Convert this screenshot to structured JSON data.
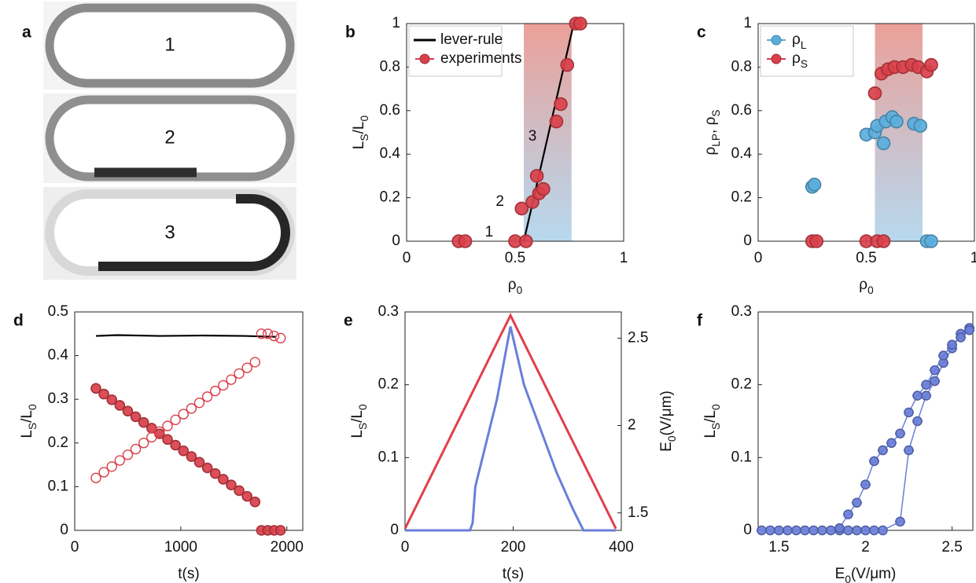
{
  "panel_a": {
    "label": "a",
    "images": [
      "1",
      "2",
      "3"
    ]
  },
  "chart_data": [
    {
      "panel": "b",
      "type": "scatter",
      "xlabel": [
        {
          "text": "ρ"
        },
        {
          "text": "0",
          "sub": true
        }
      ],
      "ylabel": [
        {
          "text": "L"
        },
        {
          "text": "S",
          "sub": true
        },
        {
          "text": "/L"
        },
        {
          "text": "0",
          "sub": true
        }
      ],
      "xlim": [
        0,
        1
      ],
      "ylim": [
        0,
        1
      ],
      "xticks": [
        0,
        0.5,
        1
      ],
      "yticks": [
        0,
        0.2,
        0.4,
        0.6,
        0.8,
        1
      ],
      "shade": [
        0.54,
        0.76
      ],
      "legend": "upper left",
      "series": [
        {
          "name": "lever-rule",
          "kind": "line",
          "color": "#000000",
          "x": [
            0.54,
            0.77
          ],
          "values": [
            0,
            1
          ]
        },
        {
          "name": "experiments",
          "kind": "marker",
          "color": "#d9404a",
          "x": [
            0.24,
            0.27,
            0.5,
            0.55,
            0.53,
            0.58,
            0.61,
            0.63,
            0.6,
            0.69,
            0.71,
            0.74,
            0.78,
            0.8
          ],
          "values": [
            0,
            0,
            0,
            0,
            0.15,
            0.18,
            0.22,
            0.24,
            0.3,
            0.55,
            0.63,
            0.81,
            1,
            1
          ]
        }
      ],
      "annotations": [
        {
          "text": "1",
          "x": 0.38,
          "y": 0.04
        },
        {
          "text": "2",
          "x": 0.43,
          "y": 0.18
        },
        {
          "text": "3",
          "x": 0.58,
          "y": 0.48
        }
      ]
    },
    {
      "panel": "c",
      "type": "scatter",
      "xlabel": [
        {
          "text": "ρ"
        },
        {
          "text": "0",
          "sub": true
        }
      ],
      "ylabel": [
        {
          "text": "ρ"
        },
        {
          "text": "LP",
          "sub": true
        },
        {
          "text": ", ρ"
        },
        {
          "text": "S",
          "sub": true
        }
      ],
      "xlim": [
        0,
        1
      ],
      "ylim": [
        0,
        1
      ],
      "xticks": [
        0,
        0.5,
        1
      ],
      "yticks": [
        0,
        0.2,
        0.4,
        0.6,
        0.8,
        1
      ],
      "shade": [
        0.54,
        0.76
      ],
      "legend": "upper left",
      "series": [
        {
          "name": [
            {
              "text": "ρ"
            },
            {
              "text": "L",
              "sub": true
            }
          ],
          "kind": "marker",
          "color": "#5aaedc",
          "x": [
            0.25,
            0.26,
            0.5,
            0.54,
            0.55,
            0.59,
            0.58,
            0.62,
            0.64,
            0.72,
            0.75,
            0.78,
            0.8
          ],
          "values": [
            0.25,
            0.26,
            0.49,
            0.5,
            0.53,
            0.55,
            0.45,
            0.57,
            0.55,
            0.54,
            0.53,
            0,
            0
          ]
        },
        {
          "name": [
            {
              "text": "ρ"
            },
            {
              "text": "S",
              "sub": true
            }
          ],
          "kind": "marker",
          "color": "#d9404a",
          "x": [
            0.25,
            0.27,
            0.5,
            0.55,
            0.58,
            0.54,
            0.57,
            0.6,
            0.63,
            0.67,
            0.71,
            0.74,
            0.78,
            0.8
          ],
          "values": [
            0,
            0,
            0,
            0,
            0,
            0.68,
            0.77,
            0.79,
            0.8,
            0.8,
            0.81,
            0.8,
            0.78,
            0.81
          ]
        }
      ]
    },
    {
      "panel": "d",
      "type": "scatter",
      "xlabel": "t(s)",
      "ylabel": [
        {
          "text": "L"
        },
        {
          "text": "S",
          "sub": true
        },
        {
          "text": "/L"
        },
        {
          "text": "0",
          "sub": true
        }
      ],
      "xlim": [
        0,
        2150
      ],
      "ylim": [
        0,
        0.5
      ],
      "xticks": [
        0,
        1000,
        2000
      ],
      "yticks": [
        0,
        0.1,
        0.2,
        0.3,
        0.4,
        0.5
      ],
      "series": [
        {
          "kind": "line",
          "color": "#000000",
          "x": [
            200,
            400,
            800,
            1200,
            1600,
            1900
          ],
          "values": [
            0.445,
            0.447,
            0.445,
            0.446,
            0.445,
            0.443
          ]
        },
        {
          "kind": "marker",
          "color": "#d9404a",
          "x": [
            200,
            275,
            350,
            425,
            500,
            575,
            650,
            725,
            800,
            875,
            950,
            1025,
            1100,
            1175,
            1250,
            1325,
            1400,
            1475,
            1550,
            1625,
            1700,
            1760,
            1820,
            1880,
            1940
          ],
          "values": [
            0.325,
            0.312,
            0.299,
            0.286,
            0.273,
            0.26,
            0.247,
            0.234,
            0.221,
            0.208,
            0.195,
            0.182,
            0.169,
            0.156,
            0.143,
            0.13,
            0.117,
            0.104,
            0.091,
            0.078,
            0.065,
            0,
            0,
            0,
            0
          ]
        },
        {
          "kind": "hollow-marker",
          "color": "#d9404a",
          "x": [
            200,
            275,
            350,
            425,
            500,
            575,
            650,
            725,
            800,
            875,
            950,
            1025,
            1100,
            1175,
            1250,
            1325,
            1400,
            1475,
            1550,
            1625,
            1700,
            1760,
            1820,
            1880,
            1940
          ],
          "values": [
            0.12,
            0.133,
            0.146,
            0.16,
            0.173,
            0.186,
            0.2,
            0.213,
            0.226,
            0.239,
            0.253,
            0.266,
            0.279,
            0.292,
            0.306,
            0.319,
            0.332,
            0.345,
            0.359,
            0.372,
            0.385,
            0.45,
            0.45,
            0.445,
            0.44
          ]
        }
      ]
    },
    {
      "panel": "e",
      "type": "line",
      "xlabel": "t(s)",
      "ylabel": [
        {
          "text": "L"
        },
        {
          "text": "S",
          "sub": true
        },
        {
          "text": "/L"
        },
        {
          "text": "0",
          "sub": true
        }
      ],
      "y2label": [
        {
          "text": "E"
        },
        {
          "text": "0",
          "sub": true
        },
        {
          "text": "(V/μm)"
        }
      ],
      "xlim": [
        0,
        400
      ],
      "ylim": [
        0,
        0.3
      ],
      "y2lim": [
        1.4,
        2.65
      ],
      "xticks": [
        0,
        200,
        400
      ],
      "yticks": [
        0,
        0.1,
        0.2,
        0.3
      ],
      "y2ticks": [
        1.5,
        2,
        2.5
      ],
      "axis_colors": true,
      "series": [
        {
          "kind": "line",
          "color": "#6a7fd9",
          "x": [
            0,
            120,
            125,
            130,
            150,
            170,
            195,
            220,
            250,
            280,
            310,
            330,
            390
          ],
          "values": [
            0,
            0,
            0.01,
            0.06,
            0.12,
            0.18,
            0.28,
            0.2,
            0.14,
            0.08,
            0.03,
            0,
            0
          ]
        },
        {
          "kind": "line",
          "color": "#e0404a",
          "axis": "y2",
          "x": [
            0,
            195,
            390
          ],
          "values": [
            1.41,
            2.63,
            1.41
          ]
        }
      ]
    },
    {
      "panel": "f",
      "type": "line",
      "xlabel": [
        {
          "text": "E"
        },
        {
          "text": "0",
          "sub": true
        },
        {
          "text": "(V/μm)"
        }
      ],
      "ylabel": [
        {
          "text": "L"
        },
        {
          "text": "S",
          "sub": true
        },
        {
          "text": "/L"
        },
        {
          "text": "0",
          "sub": true
        }
      ],
      "xlim": [
        1.38,
        2.62
      ],
      "ylim": [
        0,
        0.3
      ],
      "xticks": [
        1.5,
        2,
        2.5
      ],
      "yticks": [
        0,
        0.1,
        0.2,
        0.3
      ],
      "series": [
        {
          "kind": "marker-line",
          "color": "#6a7fd9",
          "xerr": 0.03,
          "x": [
            1.4,
            1.45,
            1.5,
            1.55,
            1.6,
            1.65,
            1.7,
            1.75,
            1.8,
            1.85,
            1.9,
            1.95,
            2.0,
            2.05,
            2.1,
            2.2,
            2.25,
            2.3,
            2.35,
            2.4,
            2.45,
            2.5,
            2.55,
            2.6
          ],
          "values": [
            0,
            0,
            0,
            0,
            0,
            0,
            0,
            0,
            0,
            0,
            0,
            0,
            0,
            0,
            0,
            0.012,
            0.11,
            0.15,
            0.185,
            0.205,
            0.23,
            0.25,
            0.27,
            0.278
          ]
        },
        {
          "kind": "marker-line",
          "color": "#6a7fd9",
          "xerr": 0.03,
          "x": [
            1.85,
            1.9,
            1.95,
            2.0,
            2.05,
            2.1,
            2.15,
            2.2,
            2.25,
            2.3,
            2.35,
            2.4,
            2.45,
            2.5,
            2.55,
            2.6
          ],
          "values": [
            0.003,
            0.022,
            0.038,
            0.063,
            0.095,
            0.11,
            0.12,
            0.133,
            0.162,
            0.185,
            0.2,
            0.22,
            0.24,
            0.255,
            0.265,
            0.275
          ]
        }
      ]
    }
  ]
}
